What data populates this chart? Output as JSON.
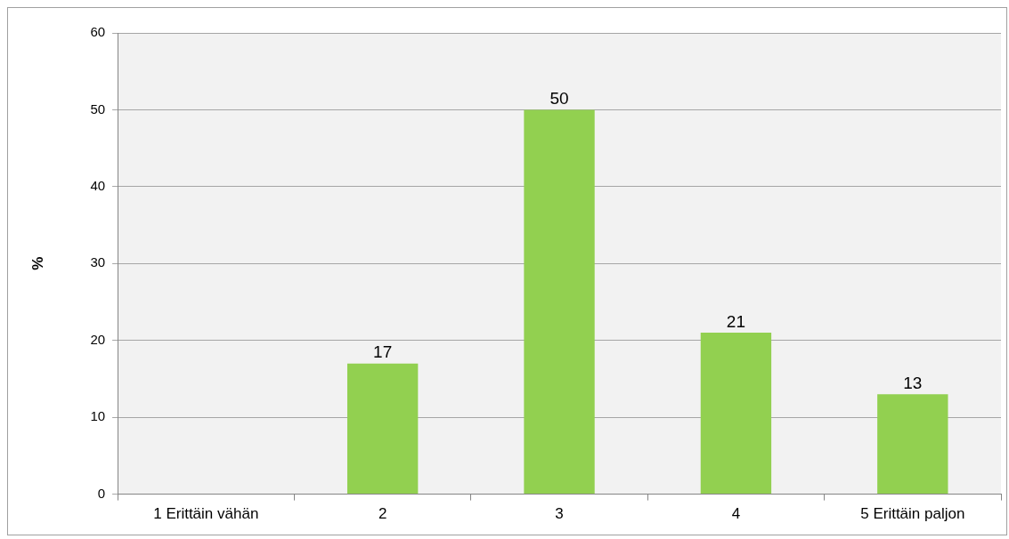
{
  "chart_data": {
    "type": "bar",
    "ylabel": "%",
    "categories": [
      "1 Erittäin vähän",
      "2",
      "3",
      "4",
      "5 Erittäin paljon"
    ],
    "values": [
      0,
      17,
      50,
      21,
      13
    ],
    "value_labels": [
      null,
      "17",
      "50",
      "21",
      "13"
    ],
    "color": "#92d050",
    "ylim": [
      0,
      60
    ],
    "yticks": [
      0,
      10,
      20,
      30,
      40,
      50,
      60
    ],
    "grid": "y",
    "legend": false
  }
}
